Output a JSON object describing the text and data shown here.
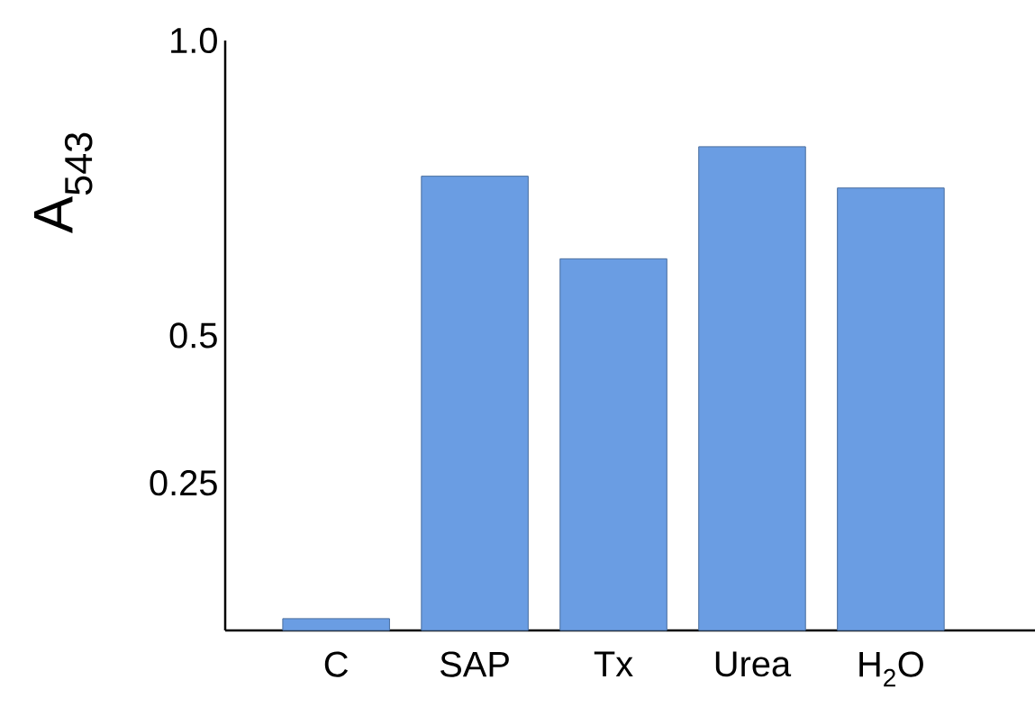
{
  "chart_data": {
    "type": "bar",
    "ylabel": "A$_{543}$",
    "categories": [
      "C",
      "SAP",
      "Tx",
      "Urea",
      "H$_{2}$O"
    ],
    "values": [
      0.02,
      0.77,
      0.63,
      0.82,
      0.75
    ],
    "color": "#6a9de3",
    "ylim": [
      0,
      1.0
    ],
    "yticks": [
      0.25,
      0.5,
      {
        "value": 1.0,
        "label": "1.0"
      }
    ],
    "grid": false
  }
}
